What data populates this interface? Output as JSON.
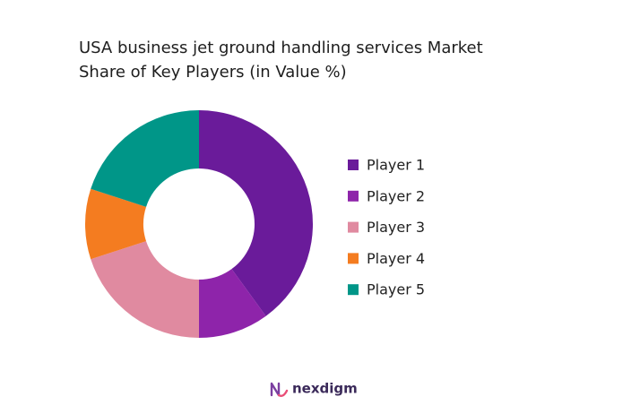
{
  "chart_data": {
    "type": "donut",
    "title": "USA business jet ground handling services Market Share of Key Players (in Value %)",
    "categories": [
      "Player 1",
      "Player 2",
      "Player 3",
      "Player 4",
      "Player 5"
    ],
    "values": [
      40,
      10,
      20,
      10,
      20
    ],
    "colors": [
      "#6a1b9a",
      "#8e24aa",
      "#e08aa0",
      "#f47c20",
      "#009688"
    ],
    "legend": "right"
  },
  "brand": "nexdigm"
}
